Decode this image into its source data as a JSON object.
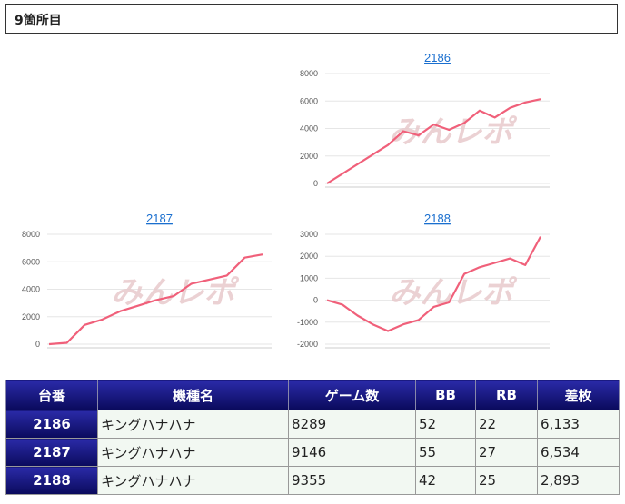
{
  "header": {
    "title": "9箇所目"
  },
  "watermark": "みんレポ",
  "colors": {
    "line": "#f0607a",
    "link": "#1a6fcf",
    "grid": "#e6e6e6",
    "header_bg": "#0a0a5c"
  },
  "charts": [
    {
      "id": "chart-2186",
      "label": "2186",
      "ymin": 0,
      "ymax": 8000,
      "yticks": [
        0,
        2000,
        4000,
        6000,
        8000
      ],
      "values": [
        0,
        700,
        1400,
        2100,
        2800,
        3800,
        3500,
        4300,
        3900,
        4400,
        5300,
        4800,
        5500,
        5900,
        6133
      ]
    },
    {
      "id": "chart-2187",
      "label": "2187",
      "ymin": 0,
      "ymax": 8000,
      "yticks": [
        0,
        2000,
        4000,
        6000,
        8000
      ],
      "values": [
        0,
        100,
        1400,
        1800,
        2400,
        2800,
        3200,
        3500,
        4400,
        4700,
        5000,
        6300,
        6534
      ]
    },
    {
      "id": "chart-2188",
      "label": "2188",
      "ymin": -2000,
      "ymax": 3000,
      "yticks": [
        -2000,
        -1000,
        0,
        1000,
        2000,
        3000
      ],
      "values": [
        0,
        -200,
        -700,
        -1100,
        -1400,
        -1100,
        -900,
        -300,
        -100,
        1200,
        1500,
        1700,
        1900,
        1600,
        2893
      ]
    }
  ],
  "table": {
    "headers": [
      "台番",
      "機種名",
      "ゲーム数",
      "BB",
      "RB",
      "差枚"
    ],
    "rows": [
      [
        "2186",
        "キングハナハナ",
        "8289",
        "52",
        "22",
        "6,133"
      ],
      [
        "2187",
        "キングハナハナ",
        "9146",
        "55",
        "27",
        "6,534"
      ],
      [
        "2188",
        "キングハナハナ",
        "9355",
        "42",
        "25",
        "2,893"
      ]
    ]
  }
}
